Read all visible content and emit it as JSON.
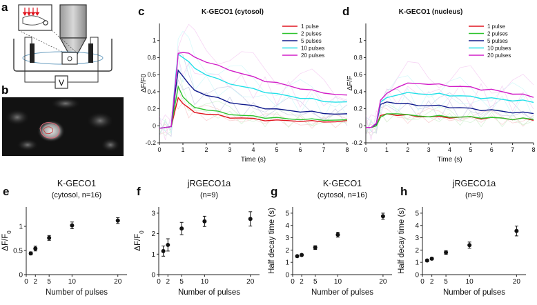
{
  "panels": {
    "a": "a",
    "b": "b",
    "c": "c",
    "d": "d",
    "e": "e",
    "f": "f",
    "g": "g",
    "h": "h"
  },
  "schematic": {
    "meter_label": "V",
    "colors": {
      "arrows": "#e0141e",
      "stroke": "#333333",
      "cell": "#c84040"
    }
  },
  "colors": {
    "1 pulse": "#e0141e",
    "2 pulses": "#2ec42e",
    "5 pulses": "#101a8c",
    "10 pulses": "#22e0e8",
    "20 pulses": "#d21ec8"
  },
  "chart_data": [
    {
      "id": "c",
      "type": "line",
      "title": "K-GECO1 (cytosol)",
      "xlabel": "Time (s)",
      "ylabel": "ΔF/F0",
      "xlim": [
        0,
        8
      ],
      "ylim": [
        -0.2,
        1.2
      ],
      "xticks": [
        "0",
        "1",
        "2",
        "3",
        "4",
        "5",
        "6",
        "7",
        "8"
      ],
      "yticks": [
        "-0.2",
        "0",
        "0.2",
        "0.4",
        "0.6",
        "0.8",
        "1"
      ],
      "legend_position": "top-right",
      "series": [
        {
          "name": "1 pulse",
          "x": [
            0,
            0.25,
            0.5,
            0.7,
            0.8,
            1.0,
            1.25,
            1.5,
            2,
            2.5,
            3,
            3.5,
            4,
            4.5,
            5,
            5.5,
            6,
            6.5,
            7,
            7.5,
            8
          ],
          "values": [
            -0.03,
            -0.02,
            -0.01,
            0.22,
            0.33,
            0.26,
            0.2,
            0.16,
            0.14,
            0.12,
            0.1,
            0.09,
            0.08,
            0.07,
            0.06,
            0.06,
            0.06,
            0.05,
            0.05,
            0.05,
            0.05
          ]
        },
        {
          "name": "2 pulses",
          "x": [
            0,
            0.25,
            0.5,
            0.7,
            0.8,
            1.0,
            1.25,
            1.5,
            2,
            2.5,
            3,
            3.5,
            4,
            4.5,
            5,
            5.5,
            6,
            6.5,
            7,
            7.5,
            8
          ],
          "values": [
            -0.03,
            -0.02,
            -0.01,
            0.3,
            0.46,
            0.34,
            0.26,
            0.22,
            0.19,
            0.16,
            0.14,
            0.12,
            0.11,
            0.1,
            0.09,
            0.08,
            0.08,
            0.07,
            0.07,
            0.07,
            0.06
          ]
        },
        {
          "name": "5 pulses",
          "x": [
            0,
            0.25,
            0.5,
            0.7,
            0.8,
            1.0,
            1.25,
            1.5,
            2,
            2.5,
            3,
            3.5,
            4,
            4.5,
            5,
            5.5,
            6,
            6.5,
            7,
            7.5,
            8
          ],
          "values": [
            -0.03,
            -0.02,
            -0.01,
            0.45,
            0.65,
            0.58,
            0.48,
            0.42,
            0.36,
            0.32,
            0.28,
            0.25,
            0.23,
            0.21,
            0.19,
            0.18,
            0.17,
            0.16,
            0.15,
            0.14,
            0.13
          ]
        },
        {
          "name": "10 pulses",
          "x": [
            0,
            0.25,
            0.5,
            0.7,
            0.8,
            1.0,
            1.25,
            1.5,
            2,
            2.5,
            3,
            3.5,
            4,
            4.5,
            5,
            5.5,
            6,
            6.5,
            7,
            7.5,
            8
          ],
          "values": [
            -0.03,
            -0.02,
            -0.01,
            0.6,
            0.84,
            0.8,
            0.74,
            0.68,
            0.6,
            0.54,
            0.5,
            0.46,
            0.43,
            0.4,
            0.37,
            0.35,
            0.33,
            0.31,
            0.29,
            0.28,
            0.27
          ]
        },
        {
          "name": "20 pulses",
          "x": [
            0,
            0.25,
            0.5,
            0.7,
            0.8,
            1.0,
            1.25,
            1.5,
            2,
            2.5,
            3,
            3.5,
            4,
            4.5,
            5,
            5.5,
            6,
            6.5,
            7,
            7.5,
            8
          ],
          "values": [
            -0.03,
            -0.02,
            -0.01,
            0.55,
            0.85,
            0.86,
            0.84,
            0.81,
            0.75,
            0.7,
            0.66,
            0.61,
            0.57,
            0.53,
            0.5,
            0.47,
            0.44,
            0.41,
            0.39,
            0.37,
            0.35
          ]
        }
      ]
    },
    {
      "id": "d",
      "type": "line",
      "title": "K-GECO1 (nucleus)",
      "xlabel": "Time (s)",
      "ylabel": "ΔF/F",
      "xlim": [
        0,
        8
      ],
      "ylim": [
        -0.2,
        1.2
      ],
      "xticks": [
        "0",
        "1",
        "2",
        "3",
        "4",
        "5",
        "6",
        "7",
        "8"
      ],
      "yticks": [
        "-0.2",
        "0",
        "0.2",
        "0.4",
        "0.6",
        "0.8",
        "1"
      ],
      "legend_position": "top-right",
      "series": [
        {
          "name": "1 pulse",
          "x": [
            0,
            0.25,
            0.5,
            0.7,
            1,
            1.5,
            2,
            2.5,
            3,
            3.5,
            4,
            4.5,
            5,
            5.5,
            6,
            6.5,
            7,
            7.5,
            8
          ],
          "values": [
            -0.02,
            -0.02,
            0.0,
            0.12,
            0.14,
            0.12,
            0.12,
            0.11,
            0.11,
            0.1,
            0.1,
            0.1,
            0.1,
            0.09,
            0.09,
            0.09,
            0.08,
            0.08,
            0.07
          ]
        },
        {
          "name": "2 pulses",
          "x": [
            0,
            0.25,
            0.5,
            0.7,
            1,
            1.5,
            2,
            2.5,
            3,
            3.5,
            4,
            4.5,
            5,
            5.5,
            6,
            6.5,
            7,
            7.5,
            8
          ],
          "values": [
            -0.02,
            -0.02,
            0.0,
            0.1,
            0.14,
            0.14,
            0.12,
            0.12,
            0.11,
            0.11,
            0.11,
            0.1,
            0.1,
            0.1,
            0.09,
            0.09,
            0.08,
            0.08,
            0.08
          ]
        },
        {
          "name": "5 pulses",
          "x": [
            0,
            0.25,
            0.5,
            0.7,
            1,
            1.5,
            2,
            2.5,
            3,
            3.5,
            4,
            4.5,
            5,
            5.5,
            6,
            6.5,
            7,
            7.5,
            8
          ],
          "values": [
            -0.02,
            -0.02,
            0.02,
            0.25,
            0.28,
            0.26,
            0.25,
            0.24,
            0.24,
            0.23,
            0.22,
            0.21,
            0.2,
            0.19,
            0.18,
            0.17,
            0.16,
            0.15,
            0.15
          ]
        },
        {
          "name": "10 pulses",
          "x": [
            0,
            0.25,
            0.5,
            0.7,
            1,
            1.5,
            2,
            2.5,
            3,
            3.5,
            4,
            4.5,
            5,
            5.5,
            6,
            6.5,
            7,
            7.5,
            8
          ],
          "values": [
            -0.02,
            -0.02,
            0.03,
            0.28,
            0.33,
            0.36,
            0.38,
            0.38,
            0.37,
            0.37,
            0.36,
            0.35,
            0.34,
            0.33,
            0.32,
            0.31,
            0.3,
            0.29,
            0.28
          ]
        },
        {
          "name": "20 pulses",
          "x": [
            0,
            0.25,
            0.5,
            0.7,
            1,
            1.5,
            2,
            2.5,
            3,
            3.5,
            4,
            4.5,
            5,
            5.5,
            6,
            6.5,
            7,
            7.5,
            8
          ],
          "values": [
            -0.02,
            -0.02,
            0.03,
            0.3,
            0.38,
            0.45,
            0.49,
            0.5,
            0.49,
            0.48,
            0.47,
            0.46,
            0.45,
            0.43,
            0.42,
            0.4,
            0.38,
            0.36,
            0.34
          ]
        }
      ]
    },
    {
      "id": "e",
      "type": "scatter",
      "title": "K-GECO1",
      "subtitle": "(cytosol, n=16)",
      "xlabel": "Number of pulses",
      "ylabel": "ΔF/F",
      "ylabel_subscript": "0",
      "xlim": [
        0,
        22
      ],
      "ylim": [
        0,
        1.4
      ],
      "xticks": [
        "0",
        "2",
        "5",
        "10",
        "20"
      ],
      "yticks": [
        "0",
        "0.5",
        "1"
      ],
      "points": [
        {
          "x": 1,
          "y": 0.44,
          "err": 0.03
        },
        {
          "x": 2,
          "y": 0.54,
          "err": 0.05
        },
        {
          "x": 5,
          "y": 0.76,
          "err": 0.05
        },
        {
          "x": 10,
          "y": 1.02,
          "err": 0.07
        },
        {
          "x": 20,
          "y": 1.12,
          "err": 0.06
        }
      ]
    },
    {
      "id": "f",
      "type": "scatter",
      "title": "jRGECO1a",
      "subtitle": "(n=9)",
      "xlabel": "Number of pulses",
      "ylabel": "ΔF/F",
      "ylabel_subscript": "0",
      "xlim": [
        0,
        22
      ],
      "ylim": [
        0,
        3.3
      ],
      "xticks": [
        "0",
        "2",
        "5",
        "10",
        "20"
      ],
      "yticks": [
        "0",
        "1",
        "2",
        "3"
      ],
      "points": [
        {
          "x": 1,
          "y": 1.15,
          "err": 0.25
        },
        {
          "x": 2,
          "y": 1.45,
          "err": 0.3
        },
        {
          "x": 5,
          "y": 2.25,
          "err": 0.3
        },
        {
          "x": 10,
          "y": 2.6,
          "err": 0.25
        },
        {
          "x": 20,
          "y": 2.72,
          "err": 0.35
        }
      ]
    },
    {
      "id": "g",
      "type": "scatter",
      "title": "K-GECO1",
      "subtitle": "(cytosol, n=16)",
      "xlabel": "Number of pulses",
      "ylabel": "Half decay time (s)",
      "xlim": [
        0,
        22
      ],
      "ylim": [
        0,
        5.5
      ],
      "xticks": [
        "0",
        "2",
        "5",
        "10",
        "20"
      ],
      "yticks": [
        "0",
        "1",
        "2",
        "3",
        "4",
        "5"
      ],
      "points": [
        {
          "x": 1,
          "y": 1.5,
          "err": 0.08
        },
        {
          "x": 2,
          "y": 1.6,
          "err": 0.08
        },
        {
          "x": 5,
          "y": 2.2,
          "err": 0.15
        },
        {
          "x": 10,
          "y": 3.25,
          "err": 0.2
        },
        {
          "x": 20,
          "y": 4.75,
          "err": 0.25
        }
      ]
    },
    {
      "id": "h",
      "type": "scatter",
      "title": "jRGECO1a",
      "subtitle": "(n=9)",
      "xlabel": "Number of pulses",
      "ylabel": "Half decay time (s)",
      "xlim": [
        0,
        22
      ],
      "ylim": [
        0,
        5.5
      ],
      "xticks": [
        "0",
        "2",
        "5",
        "10",
        "20"
      ],
      "yticks": [
        "0",
        "1",
        "2",
        "3",
        "4",
        "5"
      ],
      "points": [
        {
          "x": 1,
          "y": 1.15,
          "err": 0.1
        },
        {
          "x": 2,
          "y": 1.3,
          "err": 0.1
        },
        {
          "x": 5,
          "y": 1.8,
          "err": 0.15
        },
        {
          "x": 10,
          "y": 2.4,
          "err": 0.25
        },
        {
          "x": 20,
          "y": 3.55,
          "err": 0.4
        }
      ]
    }
  ]
}
